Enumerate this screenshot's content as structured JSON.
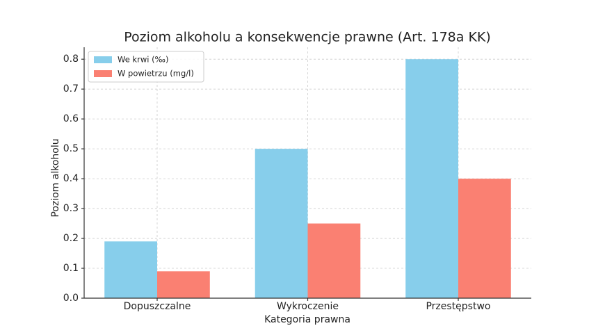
{
  "chart_data": {
    "type": "bar",
    "title": "Poziom alkoholu a konsekwencje prawne (Art. 178a KK)",
    "x_label": "Kategoria prawna",
    "y_label": "Poziom alkoholu",
    "categories": [
      "Dopuszczalne",
      "Wykroczenie",
      "Przestępstwo"
    ],
    "series": [
      {
        "name": "We krwi (‰)",
        "color": "#87ceeb",
        "values": [
          0.19,
          0.5,
          0.8
        ]
      },
      {
        "name": "W powietrzu (mg/l)",
        "color": "#fa8072",
        "values": [
          0.09,
          0.25,
          0.4
        ]
      }
    ],
    "ylim": [
      0,
      0.84
    ],
    "yticks": [
      {
        "value": 0,
        "label": "0.0"
      },
      0.1,
      0.2,
      0.3,
      0.4,
      0.5,
      0.6,
      0.7,
      0.8
    ],
    "grid": true,
    "legend": "upper left"
  }
}
